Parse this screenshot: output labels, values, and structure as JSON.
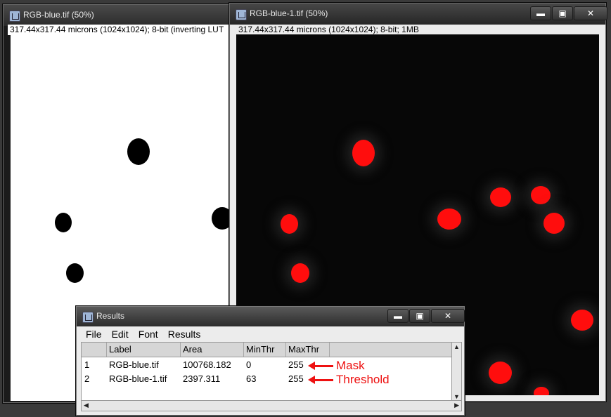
{
  "left_window": {
    "title": "RGB-blue.tif (50%)",
    "info": "317.44x317.44 microns (1024x1024); 8-bit (inverting LUT"
  },
  "right_window": {
    "title": "RGB-blue-1.tif (50%)",
    "info": "317.44x317.44 microns (1024x1024); 8-bit; 1MB",
    "overlay_color": "#ff0d0d",
    "controls": {
      "minimize": "▬",
      "maximize": "▣",
      "close": "✕"
    }
  },
  "results_window": {
    "title": "Results",
    "controls": {
      "minimize": "▬",
      "maximize": "▣",
      "close": "✕"
    },
    "menu": [
      "File",
      "Edit",
      "Font",
      "Results"
    ],
    "columns": [
      "",
      "Label",
      "Area",
      "MinThr",
      "MaxThr"
    ],
    "rows": [
      {
        "index": "1",
        "label": "RGB-blue.tif",
        "area": "100768.182",
        "minthr": "0",
        "maxthr": "255"
      },
      {
        "index": "2",
        "label": "RGB-blue-1.tif",
        "area": "2397.311",
        "minthr": "63",
        "maxthr": "255"
      }
    ],
    "annotations": [
      "Mask",
      "Threshold"
    ],
    "annotation_color": "#ee1111"
  }
}
